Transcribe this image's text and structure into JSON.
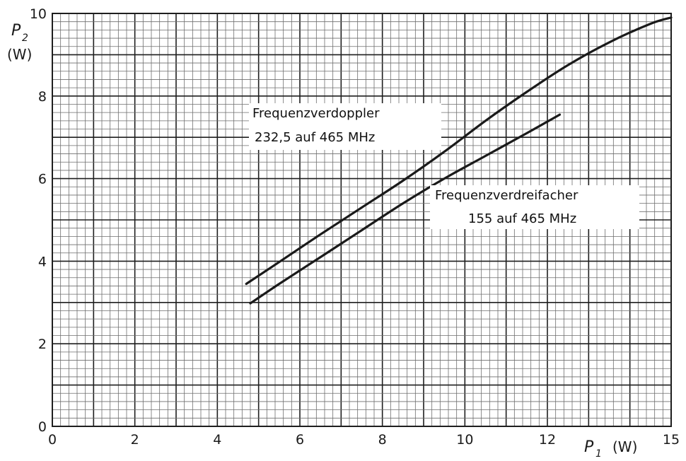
{
  "chart_data": {
    "type": "line",
    "xlabel": "P",
    "xlabel_sub": "1",
    "xlabel_unit": "(W)",
    "ylabel": "P",
    "ylabel_sub": "2",
    "ylabel_unit": "(W)",
    "xlim": [
      0,
      15
    ],
    "ylim": [
      0,
      10
    ],
    "xticks": [
      0,
      2,
      4,
      6,
      8,
      10,
      12,
      15
    ],
    "yticks": [
      0,
      2,
      4,
      6,
      8,
      10
    ],
    "grid": true,
    "series": [
      {
        "x": [
          4.7,
          5.5,
          6.5,
          7.5,
          8.5,
          9.5,
          10.5,
          11.5,
          12.5,
          13.5,
          14.5,
          15.0
        ],
        "y": [
          3.45,
          3.98,
          4.65,
          5.3,
          5.95,
          6.65,
          7.4,
          8.1,
          8.75,
          9.3,
          9.75,
          9.9
        ],
        "color": "#1a1a1a"
      },
      {
        "x": [
          4.8,
          5.5,
          6.5,
          7.5,
          8.5,
          9.5,
          10.5,
          11.5,
          12.3
        ],
        "y": [
          2.98,
          3.45,
          4.1,
          4.75,
          5.4,
          6.0,
          6.55,
          7.1,
          7.55
        ],
        "color": "#1a1a1a"
      }
    ],
    "annotations": [
      {
        "lines": [
          "Frequenzverdoppler",
          "232,5 auf 465 MHz"
        ]
      },
      {
        "lines": [
          "Frequenzverdreifacher",
          "155 auf 465 MHz"
        ]
      }
    ],
    "colors": {
      "grid_minor": "#6e6e6e",
      "grid_major": "#1e1e1e",
      "line": "#1a1a1a",
      "text": "#1a1a1a"
    }
  }
}
